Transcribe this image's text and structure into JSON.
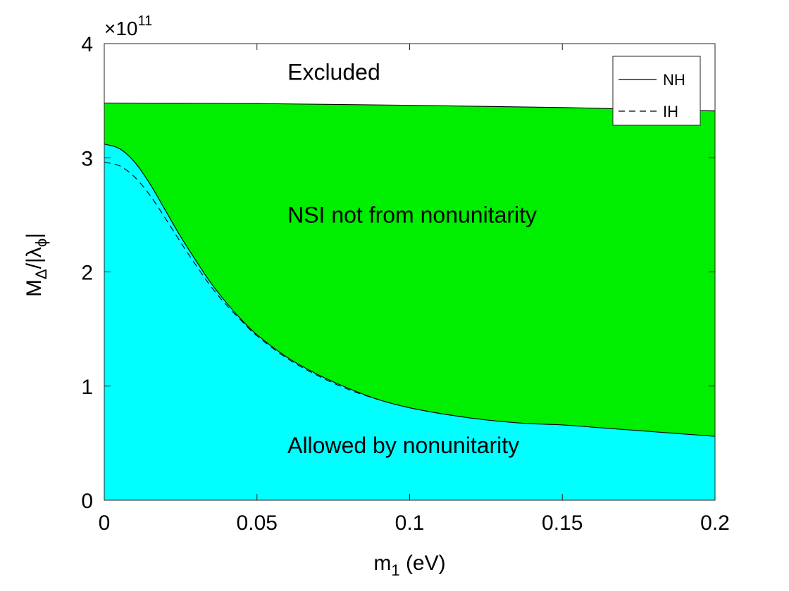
{
  "chart_data": {
    "type": "area",
    "title": "",
    "xlabel": {
      "main": "m",
      "sub": "1",
      "unit": " (eV)"
    },
    "ylabel": {
      "main": "M",
      "sub1": "Δ",
      "mid": "/|λ",
      "sub2": "ϕ",
      "end": "|"
    },
    "xlim": [
      0,
      0.2
    ],
    "ylim": [
      0,
      4
    ],
    "y_exponent": {
      "base": "×10",
      "power": "11"
    },
    "x_ticks": [
      {
        "value": 0,
        "label": "0"
      },
      {
        "value": 0.05,
        "label": "0.05"
      },
      {
        "value": 0.1,
        "label": "0.1"
      },
      {
        "value": 0.15,
        "label": "0.15"
      },
      {
        "value": 0.2,
        "label": "0.2"
      }
    ],
    "y_ticks": [
      {
        "value": 0,
        "label": "0"
      },
      {
        "value": 1,
        "label": "1"
      },
      {
        "value": 2,
        "label": "2"
      },
      {
        "value": 3,
        "label": "3"
      },
      {
        "value": 4,
        "label": "4"
      }
    ],
    "grid": false,
    "legend_position": "top-right",
    "regions": [
      {
        "text": "Excluded",
        "color": "#ffffff",
        "label_at": [
          0.06,
          3.75
        ]
      },
      {
        "text": "NSI not from nonunitarity",
        "color": "#00ee00",
        "label_at": [
          0.06,
          2.5
        ]
      },
      {
        "text": "Allowed by nonunitarity",
        "color": "#00ffff",
        "label_at": [
          0.06,
          0.48
        ]
      }
    ],
    "upper_bound": {
      "x": [
        0,
        0.05,
        0.1,
        0.15,
        0.2
      ],
      "y": [
        3.48,
        3.475,
        3.46,
        3.44,
        3.41
      ]
    },
    "series": [
      {
        "name": "NH",
        "style": "solid",
        "x": [
          0,
          0.005,
          0.01,
          0.015,
          0.02,
          0.025,
          0.03,
          0.035,
          0.04,
          0.045,
          0.05,
          0.06,
          0.07,
          0.08,
          0.09,
          0.1,
          0.11,
          0.12,
          0.13,
          0.14,
          0.15,
          0.16,
          0.17,
          0.18,
          0.19,
          0.2
        ],
        "y": [
          3.12,
          3.08,
          2.96,
          2.77,
          2.54,
          2.31,
          2.1,
          1.9,
          1.73,
          1.58,
          1.45,
          1.25,
          1.1,
          0.98,
          0.88,
          0.81,
          0.76,
          0.72,
          0.69,
          0.67,
          0.66,
          0.64,
          0.62,
          0.6,
          0.58,
          0.56
        ]
      },
      {
        "name": "IH",
        "style": "dashed",
        "x": [
          0,
          0.005,
          0.01,
          0.015,
          0.02,
          0.025,
          0.03,
          0.035,
          0.04,
          0.045,
          0.05,
          0.06,
          0.07,
          0.08,
          0.09,
          0.1,
          0.11,
          0.12
        ],
        "y": [
          2.96,
          2.93,
          2.83,
          2.67,
          2.47,
          2.26,
          2.06,
          1.87,
          1.71,
          1.57,
          1.44,
          1.24,
          1.09,
          0.97,
          0.88,
          0.81,
          0.76,
          0.72
        ]
      }
    ]
  }
}
